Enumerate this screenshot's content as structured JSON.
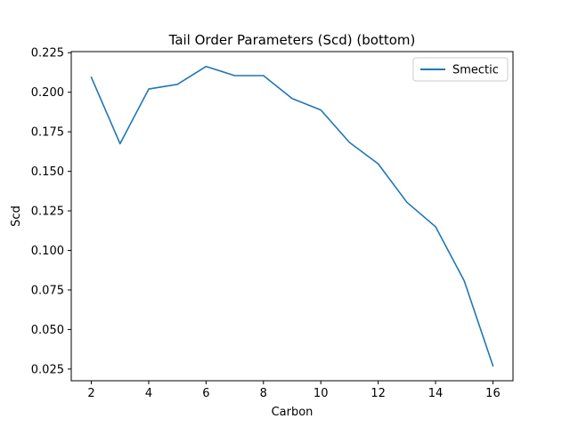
{
  "chart_data": {
    "type": "line",
    "title": "Tail Order Parameters (Scd) (bottom)",
    "xlabel": "Carbon",
    "ylabel": "Scd",
    "x": [
      2,
      3,
      4,
      5,
      6,
      7,
      8,
      9,
      10,
      11,
      12,
      13,
      14,
      15,
      16
    ],
    "series": [
      {
        "name": "Smectic",
        "color": "#1f77b4",
        "values": [
          0.2095,
          0.1675,
          0.202,
          0.205,
          0.2163,
          0.2105,
          0.2105,
          0.196,
          0.1888,
          0.1683,
          0.1548,
          0.1305,
          0.115,
          0.0808,
          0.027
        ]
      }
    ],
    "xlim": [
      1.3,
      16.7
    ],
    "ylim": [
      0.0176,
      0.2257
    ],
    "xticks": [
      2,
      4,
      6,
      8,
      10,
      12,
      14,
      16
    ],
    "yticks": [
      0.025,
      0.05,
      0.075,
      0.1,
      0.125,
      0.15,
      0.175,
      0.2,
      0.225
    ],
    "xtick_labels": [
      "2",
      "4",
      "6",
      "8",
      "10",
      "12",
      "14",
      "16"
    ],
    "ytick_labels": [
      "0.025",
      "0.050",
      "0.075",
      "0.100",
      "0.125",
      "0.150",
      "0.175",
      "0.200",
      "0.225"
    ],
    "grid": false,
    "legend_position": "top-right"
  }
}
